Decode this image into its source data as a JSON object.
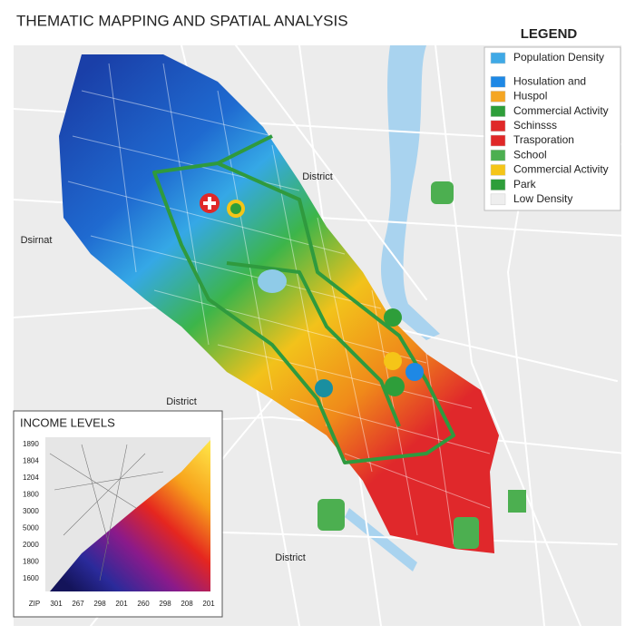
{
  "header": {
    "title": "THEMATIC MAPPING AND SPATIAL ANALYSIS"
  },
  "legend": {
    "title": "LEGEND",
    "items": [
      {
        "label": "Population Density",
        "color": "#3fa9e6"
      },
      {
        "label": "Hosulation and",
        "color": "#1e88e5"
      },
      {
        "label": "Huspol",
        "color": "#f5a623"
      },
      {
        "label": "Commercial Activity",
        "color": "#2e9e3a"
      },
      {
        "label": "Schinsss",
        "color": "#e02828"
      },
      {
        "label": "Trasporation",
        "color": "#e02828"
      },
      {
        "label": "School",
        "color": "#4caf50"
      },
      {
        "label": "Commercial Activity",
        "color": "#f5c518"
      },
      {
        "label": "Park",
        "color": "#2e9e3a"
      },
      {
        "label": "Low Density",
        "color": "#eeeeee"
      }
    ]
  },
  "map": {
    "labels": [
      "District",
      "Dsirnat",
      "District",
      "District"
    ]
  },
  "inset": {
    "title": "INCOME LEVELS",
    "y_labels": [
      "1890",
      "1804",
      "1204",
      "1800",
      "3000",
      "5000",
      "2000",
      "1800",
      "1600"
    ],
    "x_labels": [
      "ZIP",
      "301",
      "267",
      "298",
      "201",
      "260",
      "298",
      "208",
      "201"
    ]
  }
}
